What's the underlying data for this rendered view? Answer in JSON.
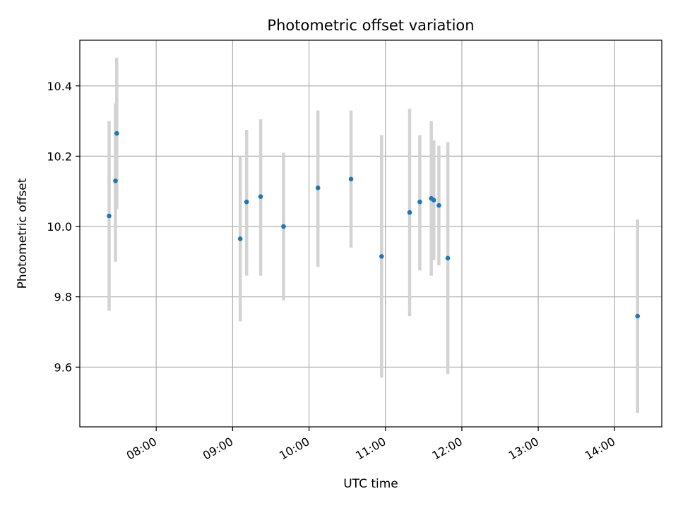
{
  "chart_data": {
    "type": "scatter",
    "title": "Photometric offset variation",
    "xlabel": "UTC time",
    "ylabel": "Photometric offset",
    "grid": true,
    "x_tick_labels": [
      "08:00",
      "09:00",
      "10:00",
      "11:00",
      "12:00",
      "13:00",
      "14:00"
    ],
    "y_tick_labels": [
      "9.6",
      "9.8",
      "10.0",
      "10.2",
      "10.4"
    ],
    "xlim": [
      "07:00",
      "14:37"
    ],
    "ylim": [
      9.43,
      10.53
    ],
    "colors": {
      "points": "#1f77b4",
      "error_bars": "#d3d3d3",
      "grid": "#b0b0b0"
    },
    "points": [
      {
        "x": "07:23",
        "y": 10.03,
        "yerr_low": 9.76,
        "yerr_high": 10.3
      },
      {
        "x": "07:28",
        "y": 10.13,
        "yerr_low": 9.9,
        "yerr_high": 10.35
      },
      {
        "x": "07:29",
        "y": 10.265,
        "yerr_low": 10.05,
        "yerr_high": 10.48
      },
      {
        "x": "09:06",
        "y": 9.965,
        "yerr_low": 9.73,
        "yerr_high": 10.2
      },
      {
        "x": "09:11",
        "y": 10.07,
        "yerr_low": 9.86,
        "yerr_high": 10.275
      },
      {
        "x": "09:22",
        "y": 10.085,
        "yerr_low": 9.86,
        "yerr_high": 10.305
      },
      {
        "x": "09:40",
        "y": 10.0,
        "yerr_low": 9.79,
        "yerr_high": 10.21
      },
      {
        "x": "10:07",
        "y": 10.11,
        "yerr_low": 9.885,
        "yerr_high": 10.33
      },
      {
        "x": "10:33",
        "y": 10.135,
        "yerr_low": 9.94,
        "yerr_high": 10.33
      },
      {
        "x": "10:57",
        "y": 9.915,
        "yerr_low": 9.57,
        "yerr_high": 10.26
      },
      {
        "x": "11:19",
        "y": 10.04,
        "yerr_low": 9.745,
        "yerr_high": 10.335
      },
      {
        "x": "11:27",
        "y": 10.07,
        "yerr_low": 9.875,
        "yerr_high": 10.26
      },
      {
        "x": "11:36",
        "y": 10.08,
        "yerr_low": 9.86,
        "yerr_high": 10.3
      },
      {
        "x": "11:38",
        "y": 10.075,
        "yerr_low": 9.905,
        "yerr_high": 10.245
      },
      {
        "x": "11:42",
        "y": 10.06,
        "yerr_low": 9.89,
        "yerr_high": 10.23
      },
      {
        "x": "11:49",
        "y": 9.91,
        "yerr_low": 9.58,
        "yerr_high": 10.24
      },
      {
        "x": "14:18",
        "y": 9.745,
        "yerr_low": 9.47,
        "yerr_high": 10.02
      }
    ]
  }
}
